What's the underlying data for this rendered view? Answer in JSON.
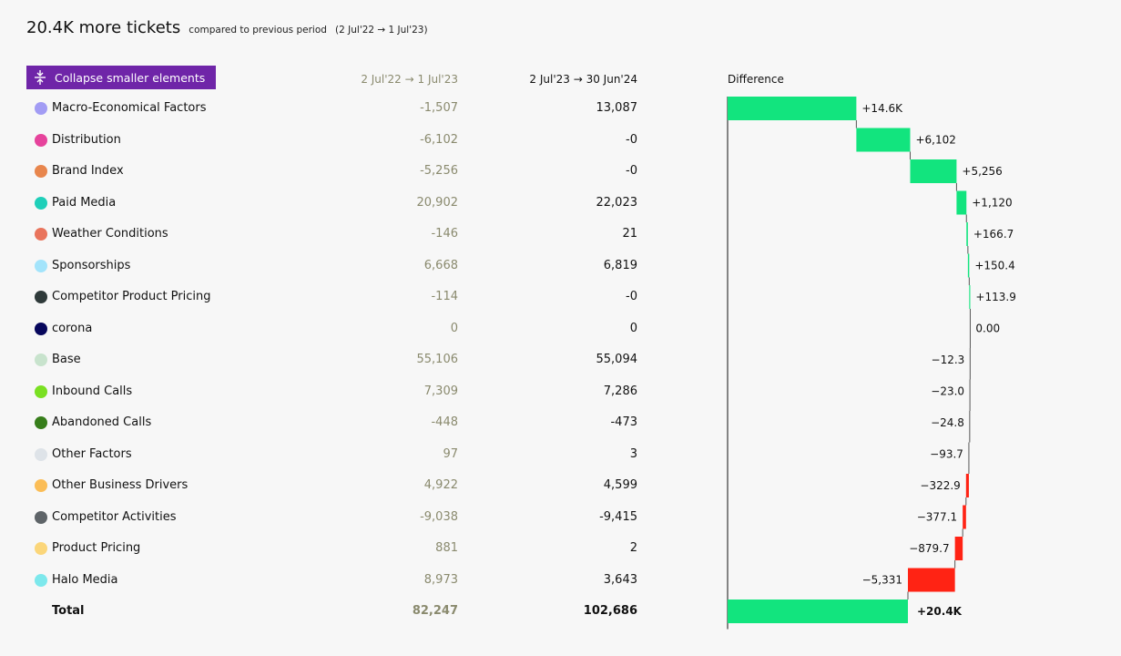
{
  "header": {
    "headline": "20.4K more tickets",
    "subtext": "compared to previous period",
    "period": "(2 Jul'22 → 1 Jul'23)"
  },
  "toolbar": {
    "collapse_label": "Collapse smaller elements",
    "collapse_icon": "collapse-vertical-icon"
  },
  "columns": {
    "previous": "2 Jul'22 → 1 Jul'23",
    "current": "2 Jul'23 → 30 Jun'24",
    "difference": "Difference"
  },
  "colors": {
    "positive": "#12e47e",
    "negative": "#ff2314",
    "button": "#6f25a8",
    "previous_text": "#8a8a6e"
  },
  "rows": [
    {
      "label": "Macro-Economical Factors",
      "color": "#a29cf4",
      "prev": "-1,507",
      "cur": "13,087",
      "diff_label": "+14.6K",
      "diff": 14594
    },
    {
      "label": "Distribution",
      "color": "#e6439c",
      "prev": "-6,102",
      "cur": "-0",
      "diff_label": "+6,102",
      "diff": 6102
    },
    {
      "label": "Brand Index",
      "color": "#e8864d",
      "prev": "-5,256",
      "cur": "-0",
      "diff_label": "+5,256",
      "diff": 5256
    },
    {
      "label": "Paid Media",
      "color": "#1fcfb9",
      "prev": "20,902",
      "cur": "22,023",
      "diff_label": "+1,120",
      "diff": 1120
    },
    {
      "label": "Weather Conditions",
      "color": "#e9745c",
      "prev": "-146",
      "cur": "21",
      "diff_label": "+166.7",
      "diff": 166.7
    },
    {
      "label": "Sponsorships",
      "color": "#a3e4fb",
      "prev": "6,668",
      "cur": "6,819",
      "diff_label": "+150.4",
      "diff": 150.4
    },
    {
      "label": "Competitor Product Pricing",
      "color": "#2f3a3a",
      "prev": "-114",
      "cur": "-0",
      "diff_label": "+113.9",
      "diff": 113.9
    },
    {
      "label": "corona",
      "color": "#07075c",
      "prev": "0",
      "cur": "0",
      "diff_label": "0.00",
      "diff": 0
    },
    {
      "label": "Base",
      "color": "#c8e3cd",
      "prev": "55,106",
      "cur": "55,094",
      "diff_label": "−12.3",
      "diff": -12.3
    },
    {
      "label": "Inbound Calls",
      "color": "#7ae022",
      "prev": "7,309",
      "cur": "7,286",
      "diff_label": "−23.0",
      "diff": -23.0
    },
    {
      "label": "Abandoned Calls",
      "color": "#377e1b",
      "prev": "-448",
      "cur": "-473",
      "diff_label": "−24.8",
      "diff": -24.8
    },
    {
      "label": "Other Factors",
      "color": "#dee3e8",
      "prev": "97",
      "cur": "3",
      "diff_label": "−93.7",
      "diff": -93.7
    },
    {
      "label": "Other Business Drivers",
      "color": "#fbbd56",
      "prev": "4,922",
      "cur": "4,599",
      "diff_label": "−322.9",
      "diff": -322.9
    },
    {
      "label": "Competitor Activities",
      "color": "#5e6468",
      "prev": "-9,038",
      "cur": "-9,415",
      "diff_label": "−377.1",
      "diff": -377.1
    },
    {
      "label": "Product Pricing",
      "color": "#fbd67a",
      "prev": "881",
      "cur": "2",
      "diff_label": "−879.7",
      "diff": -879.7
    },
    {
      "label": "Halo Media",
      "color": "#7de8ec",
      "prev": "8,973",
      "cur": "3,643",
      "diff_label": "−5,331",
      "diff": -5331
    }
  ],
  "total": {
    "label": "Total",
    "prev": "82,247",
    "cur": "102,686",
    "diff_label": "+20.4K",
    "diff": 20439
  }
}
